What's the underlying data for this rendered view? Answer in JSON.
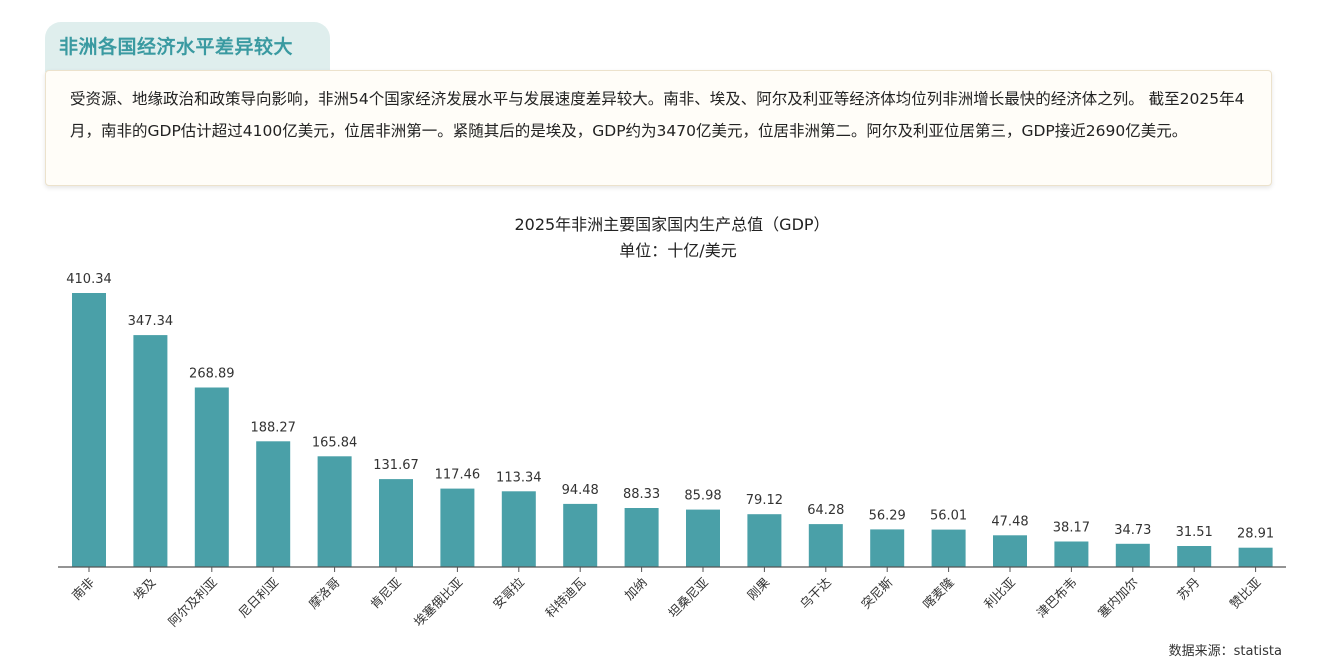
{
  "header": {
    "title": "非洲各国经济水平差异较大"
  },
  "summary": {
    "text": "受资源、地缘政治和政策导向影响，非洲54个国家经济发展水平与发展速度差异较大。南非、埃及、阿尔及利亚等经济体均位列非洲增长最快的经济体之列。 截至2025年4月，南非的GDP估计超过4100亿美元，位居非洲第一。紧随其后的是埃及，GDP约为3470亿美元，位居非洲第二。阿尔及利亚位居第三，GDP接近2690亿美元。"
  },
  "source": "数据来源：statista",
  "chart_data": {
    "type": "bar",
    "title": "2025年非洲主要国家国内生产总值（GDP）",
    "subtitle": "单位：十亿/美元",
    "categories": [
      "南非",
      "埃及",
      "阿尔及利亚",
      "尼日利亚",
      "摩洛哥",
      "肯尼亚",
      "埃塞俄比亚",
      "安哥拉",
      "科特迪瓦",
      "加纳",
      "坦桑尼亚",
      "刚果",
      "乌干达",
      "突尼斯",
      "喀麦隆",
      "利比亚",
      "津巴布韦",
      "塞内加尔",
      "苏丹",
      "赞比亚"
    ],
    "values": [
      410.34,
      347.34,
      268.89,
      188.27,
      165.84,
      131.67,
      117.46,
      113.34,
      94.48,
      88.33,
      85.98,
      79.12,
      64.28,
      56.29,
      56.01,
      47.48,
      38.17,
      34.73,
      31.51,
      28.91
    ],
    "value_labels": [
      "410.34",
      "347.34",
      "268.89",
      "188.27",
      "165.84",
      "131.67",
      "117.46",
      "113.34",
      "94.48",
      "88.33",
      "85.98",
      "79.12",
      "64.28",
      "56.29",
      "56.01",
      "47.48",
      "38.17",
      "34.73",
      "31.51",
      "28.91"
    ],
    "ylim": [
      0,
      410.34
    ],
    "bar_color": "#4aa0a8",
    "grid": false,
    "legend": "none"
  }
}
